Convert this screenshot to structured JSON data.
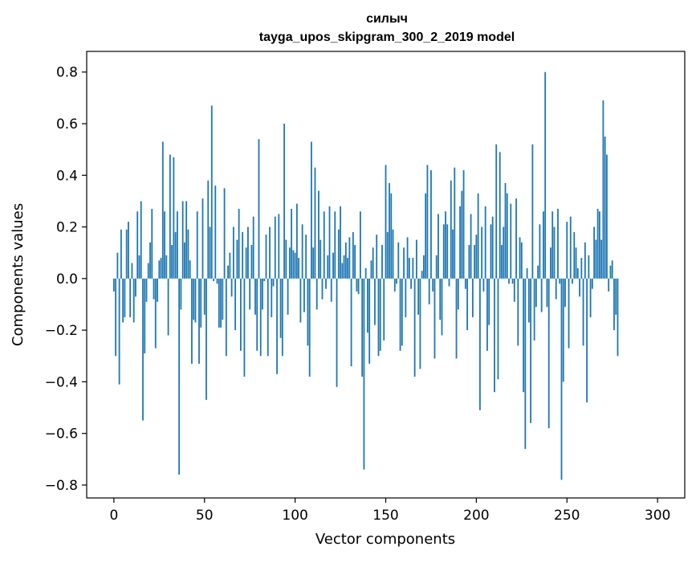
{
  "chart_data": {
    "type": "bar",
    "title_line1": "силыч",
    "title_line2": "tayga_upos_skipgram_300_2_2019 model",
    "xlabel": "Vector components",
    "ylabel": "Components values",
    "xlim": [
      -15,
      315
    ],
    "ylim": [
      -0.85,
      0.88
    ],
    "x_ticks": [
      0,
      50,
      100,
      150,
      200,
      250,
      300
    ],
    "x_tick_labels": [
      "0",
      "50",
      "100",
      "150",
      "200",
      "250",
      "300"
    ],
    "y_ticks": [
      -0.8,
      -0.6,
      -0.4,
      -0.2,
      0.0,
      0.2,
      0.4,
      0.6,
      0.8
    ],
    "y_tick_labels": [
      "−0.8",
      "−0.6",
      "−0.4",
      "−0.2",
      "0.0",
      "0.2",
      "0.4",
      "0.6",
      "0.8"
    ],
    "bar_color": "#1f77b4",
    "grid": false,
    "values": [
      -0.05,
      -0.3,
      0.1,
      -0.41,
      0.19,
      -0.17,
      -0.15,
      0.19,
      0.22,
      -0.15,
      0.06,
      -0.17,
      -0.07,
      0.26,
      0.09,
      0.3,
      -0.55,
      -0.29,
      -0.09,
      0.06,
      0.14,
      0.27,
      -0.08,
      -0.27,
      -0.09,
      0.07,
      0.08,
      0.53,
      0.26,
      0.09,
      -0.22,
      0.48,
      0.13,
      0.47,
      0.18,
      0.26,
      -0.76,
      -0.12,
      0.3,
      0.14,
      0.3,
      0.19,
      0.07,
      -0.33,
      -0.16,
      -0.17,
      0.26,
      -0.33,
      -0.19,
      0.31,
      -0.14,
      -0.47,
      0.38,
      0.2,
      0.67,
      -0.01,
      0.36,
      -0.02,
      -0.19,
      -0.19,
      -0.16,
      0.35,
      -0.3,
      0.05,
      0.1,
      -0.07,
      0.2,
      -0.2,
      0.15,
      0.27,
      -0.28,
      0.18,
      -0.38,
      0.12,
      0.2,
      -0.12,
      0.13,
      0.24,
      -0.14,
      -0.28,
      0.54,
      -0.3,
      -0.12,
      -0.01,
      0.17,
      -0.3,
      0.2,
      -0.15,
      -0.03,
      0.24,
      -0.37,
      0.25,
      -0.23,
      -0.3,
      0.6,
      0.15,
      -0.14,
      0.12,
      0.27,
      0.11,
      0.1,
      0.29,
      0.08,
      -0.17,
      0.21,
      -0.13,
      0.17,
      -0.26,
      -0.38,
      0.53,
      0.12,
      0.43,
      -0.12,
      0.34,
      0.15,
      -0.08,
      0.26,
      -0.04,
      0.09,
      0.28,
      -0.09,
      0.1,
      0.26,
      -0.42,
      0.19,
      0.28,
      0.06,
      0.09,
      0.14,
      0.08,
      0.16,
      -0.34,
      0.18,
      0.13,
      -0.05,
      -0.06,
      0.26,
      -0.38,
      -0.74,
      0.04,
      -0.21,
      -0.33,
      0.07,
      0.12,
      -0.18,
      0.17,
      -0.3,
      -0.28,
      0.13,
      -0.24,
      0.44,
      0.18,
      0.37,
      0.33,
      0.19,
      -0.05,
      -0.02,
      0.14,
      -0.28,
      -0.26,
      0.12,
      -0.15,
      0.16,
      0.08,
      -0.04,
      0.08,
      -0.38,
      0.15,
      -0.14,
      -0.35,
      0.03,
      0.09,
      0.33,
      0.44,
      -0.1,
      0.42,
      -0.05,
      -0.31,
      0.09,
      0.25,
      -0.16,
      -0.22,
      0.21,
      0.26,
      0.21,
      -0.03,
      0.38,
      0.19,
      0.43,
      -0.31,
      -0.12,
      0.28,
      0.34,
      0.42,
      -0.04,
      -0.2,
      0.13,
      0.25,
      -0.15,
      0.13,
      0.17,
      0.33,
      -0.51,
      0.2,
      -0.05,
      0.28,
      -0.28,
      -0.18,
      0.21,
      0.24,
      -0.44,
      0.52,
      -0.39,
      0.49,
      0.13,
      0.2,
      0.37,
      0.33,
      -0.02,
      0.29,
      -0.02,
      -0.09,
      0.31,
      -0.26,
      0.16,
      0.14,
      -0.44,
      -0.66,
      0.04,
      -0.17,
      -0.56,
      0.52,
      -0.24,
      -0.11,
      0.05,
      0.21,
      -0.13,
      0.26,
      0.8,
      -0.11,
      -0.58,
      0.12,
      0.26,
      0.2,
      -0.08,
      0.27,
      -0.02,
      -0.78,
      -0.4,
      -0.11,
      0.22,
      -0.27,
      0.24,
      -0.02,
      0.18,
      0.12,
      0.04,
      -0.07,
      0.08,
      -0.26,
      0.14,
      -0.48,
      0.09,
      -0.15,
      -0.04,
      0.2,
      0.15,
      0.27,
      0.26,
      0.15,
      0.69,
      0.55,
      0.48,
      -0.05,
      0.05,
      0.07,
      -0.2,
      -0.14,
      -0.3
    ]
  }
}
